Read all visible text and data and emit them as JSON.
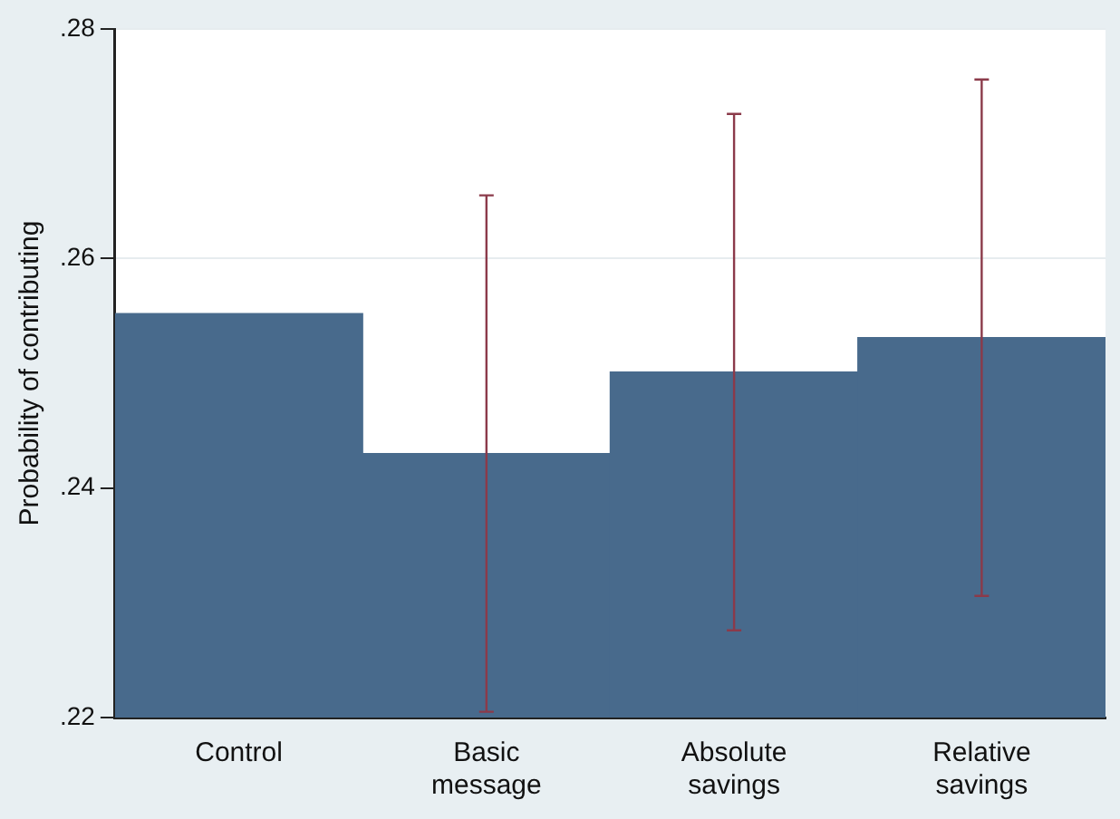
{
  "chart_data": {
    "type": "bar",
    "ylabel": "Probability of contributing",
    "categories": [
      "Control",
      "Basic message",
      "Absolute savings",
      "Relative savings"
    ],
    "values": [
      0.2552,
      0.243,
      0.2501,
      0.2531
    ],
    "errors": [
      null,
      [
        0.2205,
        0.2655
      ],
      [
        0.2276,
        0.2726
      ],
      [
        0.2306,
        0.2756
      ]
    ],
    "color": "#486a8c",
    "ylim": [
      0.22,
      0.28
    ],
    "yticks": [
      {
        "value": 0.22,
        "label": ".22"
      },
      {
        "value": 0.24,
        "label": ".24"
      },
      {
        "value": 0.26,
        "label": ".26"
      },
      {
        "value": 0.28,
        "label": ".28"
      }
    ],
    "grid": "y",
    "legend": false
  }
}
